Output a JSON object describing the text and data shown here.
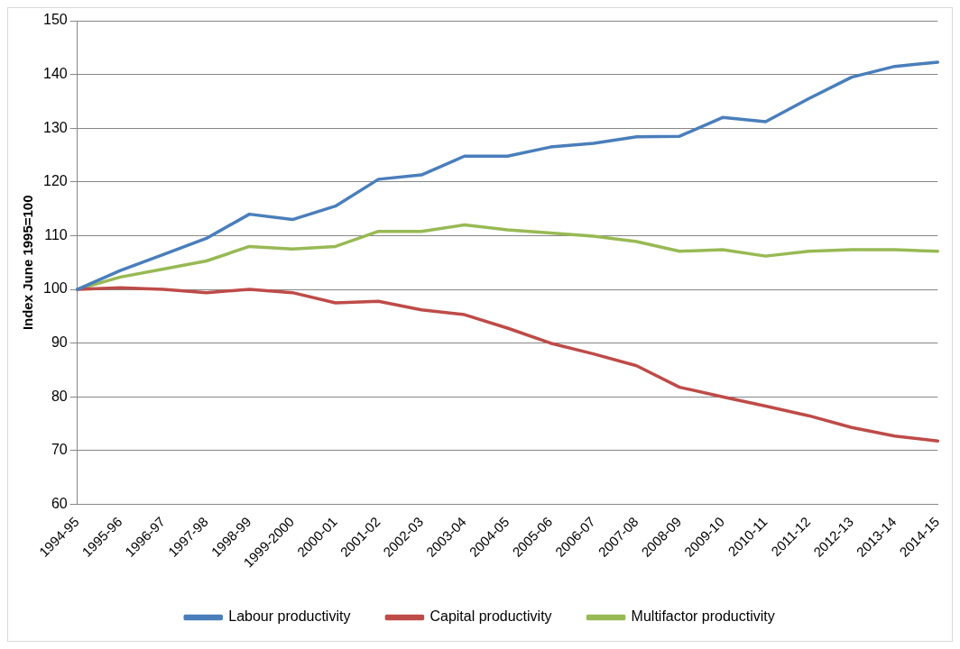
{
  "chart_data": {
    "type": "line",
    "ylabel": "Index June 1995=100",
    "categories": [
      "1994-95",
      "1995-96",
      "1996-97",
      "1997-98",
      "1998-99",
      "1999-2000",
      "2000-01",
      "2001-02",
      "2002-03",
      "2003-04",
      "2004-05",
      "2005-06",
      "2006-07",
      "2007-08",
      "2008-09",
      "2009-10",
      "2010-11",
      "2011-12",
      "2012-13",
      "2013-14",
      "2014-15"
    ],
    "series": [
      {
        "name": "Labour productivity",
        "color": "#4a7ebb",
        "values": [
          100,
          103.5,
          106.5,
          109.5,
          114,
          113,
          115.5,
          120.5,
          121.3,
          124.8,
          124.8,
          126.5,
          127.2,
          128.4,
          128.5,
          132,
          131.2,
          135.5,
          139.5,
          141.5,
          142.3
        ]
      },
      {
        "name": "Capital productivity",
        "color": "#be4b48",
        "values": [
          100,
          100.3,
          100,
          99.4,
          100,
          99.4,
          97.5,
          97.8,
          96.2,
          95.3,
          92.8,
          90,
          88,
          85.8,
          81.8,
          80,
          78.3,
          76.5,
          74.3,
          72.7,
          71.8
        ]
      },
      {
        "name": "Multifactor productivity",
        "color": "#98b954",
        "values": [
          100,
          102.3,
          103.8,
          105.3,
          108,
          107.5,
          108,
          110.8,
          110.8,
          112,
          111.1,
          110.5,
          109.9,
          108.9,
          107.1,
          107.4,
          106.2,
          107.1,
          107.4,
          107.4,
          107.1
        ]
      }
    ],
    "ylim": [
      60,
      150
    ],
    "yticks": [
      60,
      70,
      80,
      90,
      100,
      110,
      120,
      130,
      140,
      150
    ],
    "grid": "y",
    "legend": "bottom",
    "marker": "none",
    "line_style": "solid"
  }
}
